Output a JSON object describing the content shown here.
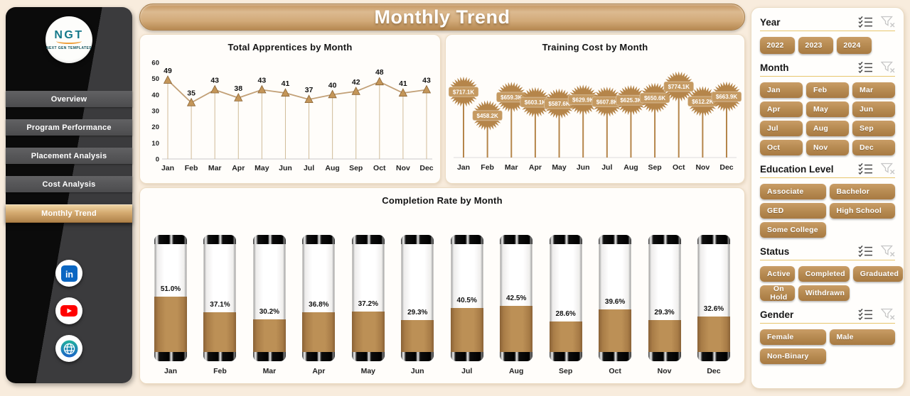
{
  "page_title": "Monthly Trend",
  "logo": {
    "text": "NGT",
    "subtext": "NEXT GEN TEMPLATES"
  },
  "sidebar": {
    "items": [
      {
        "label": "Overview",
        "active": false
      },
      {
        "label": "Program Performance",
        "active": false
      },
      {
        "label": "Placement Analysis",
        "active": false
      },
      {
        "label": "Cost Analysis",
        "active": false
      },
      {
        "label": "Monthly Trend",
        "active": true
      }
    ],
    "social": [
      {
        "name": "linkedin",
        "color": "#0a66c2"
      },
      {
        "name": "youtube",
        "color": "#ff0000"
      },
      {
        "name": "website-globe",
        "colors": [
          "#22b29e",
          "#1c64c8"
        ]
      }
    ]
  },
  "chart_data": [
    {
      "type": "line",
      "title": "Total Apprentices by Month",
      "categories": [
        "Jan",
        "Feb",
        "Mar",
        "Apr",
        "May",
        "Jun",
        "Jul",
        "Aug",
        "Sep",
        "Oct",
        "Nov",
        "Dec"
      ],
      "values": [
        49,
        35,
        43,
        38,
        43,
        41,
        37,
        40,
        42,
        48,
        41,
        43
      ],
      "xlabel": "",
      "ylabel": "",
      "ylim": [
        0,
        60
      ],
      "yticks": [
        0,
        10,
        20,
        30,
        40,
        50,
        60
      ],
      "grid": false,
      "legend_position": "none",
      "marker": "triangle-up",
      "line_color": "#c2a077",
      "marker_color": "#c49659"
    },
    {
      "type": "lollipop",
      "title": "Training Cost by Month",
      "categories": [
        "Jan",
        "Feb",
        "Mar",
        "Apr",
        "May",
        "Jun",
        "Jul",
        "Aug",
        "Sep",
        "Oct",
        "Nov",
        "Dec"
      ],
      "values": [
        717.1,
        458.2,
        659.3,
        603.1,
        587.6,
        629.9,
        607.8,
        625.3,
        650.6,
        774.1,
        612.2,
        663.9
      ],
      "labels": [
        "$717.1K",
        "$458.2K",
        "$659.3K",
        "$603.1K",
        "$587.6K",
        "$629.9K",
        "$607.8K",
        "$625.3K",
        "$650.6K",
        "$774.1K",
        "$612.2K",
        "$663.9K"
      ],
      "unit": "K",
      "xlabel": "",
      "ylabel": "",
      "grid": false,
      "legend_position": "none",
      "marker": "starburst",
      "color": "#b5854a"
    },
    {
      "type": "bar",
      "subtype": "thermometer",
      "title": "Completion Rate by Month",
      "categories": [
        "Jan",
        "Feb",
        "Mar",
        "Apr",
        "May",
        "Jun",
        "Jul",
        "Aug",
        "Sep",
        "Oct",
        "Nov",
        "Dec"
      ],
      "values": [
        51.0,
        37.1,
        30.2,
        36.8,
        37.2,
        29.3,
        40.5,
        42.5,
        28.6,
        39.6,
        29.3,
        32.6
      ],
      "labels": [
        "51.0%",
        "37.1%",
        "30.2%",
        "36.8%",
        "37.2%",
        "29.3%",
        "40.5%",
        "42.5%",
        "28.6%",
        "39.6%",
        "29.3%",
        "32.6%"
      ],
      "ylim": [
        0,
        100
      ],
      "grid": false,
      "legend_position": "none",
      "fill_color": "#bc9056"
    }
  ],
  "filters": {
    "sections": [
      {
        "name": "Year",
        "columns": 3,
        "compact": true,
        "options": [
          "2022",
          "2023",
          "2024"
        ]
      },
      {
        "name": "Month",
        "columns": 3,
        "compact": false,
        "options": [
          "Jan",
          "Feb",
          "Mar",
          "Apr",
          "May",
          "Jun",
          "Jul",
          "Aug",
          "Sep",
          "Oct",
          "Nov",
          "Dec"
        ]
      },
      {
        "name": "Education Level",
        "columns": 2,
        "compact": false,
        "options": [
          "Associate",
          "Bachelor",
          "GED",
          "High School",
          "Some College"
        ]
      },
      {
        "name": "Status",
        "columns": 3,
        "compact": false,
        "options": [
          "Active",
          "Completed",
          "Graduated",
          "On Hold",
          "Withdrawn"
        ]
      },
      {
        "name": "Gender",
        "columns": 2,
        "compact": false,
        "options": [
          "Female",
          "Male",
          "Non-Binary"
        ]
      }
    ],
    "icon_names": [
      "select-all-icon",
      "clear-filter-icon"
    ]
  },
  "colors": {
    "accent_tan": "#b5854a",
    "button_gradient_top": "#c99d66",
    "button_gradient_bottom": "#a87a42",
    "gold_underline": "#e7c66d",
    "background": "#f8ecdd",
    "sidebar_black": "#0b0b0b",
    "sidebar_gray": "#3b3b3d"
  }
}
